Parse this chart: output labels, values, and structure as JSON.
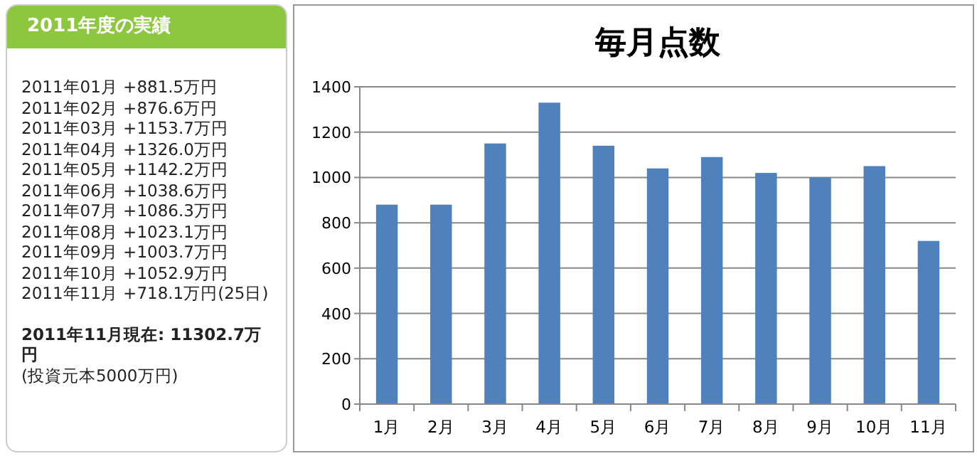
{
  "chart_data": [
    {
      "type": "other",
      "title": "2011年度の実績",
      "subtitle": "2011年11月現在: 11302.7万円",
      "annotations": [
        "2011年01月 +881.5万円",
        "2011年02月 +876.6万円",
        "2011年03月 +1153.7万円",
        "2011年04月 +1326.0万円",
        "2011年05月 +1142.2万円",
        "2011年06月 +1038.6万円",
        "2011年07月 +1086.3万円",
        "2011年08月 +1023.1万円",
        "2011年09月 +1003.7万円",
        "2011年10月 +1052.9万円",
        "2011年11月 +718.1万円(25日)",
        "(投資元本5000万円)"
      ]
    },
    {
      "type": "bar",
      "title": "毎月点数",
      "categories": [
        "1月",
        "2月",
        "3月",
        "4月",
        "5月",
        "6月",
        "7月",
        "8月",
        "9月",
        "10月",
        "11月"
      ],
      "values": [
        880,
        880,
        1150,
        1330,
        1140,
        1040,
        1090,
        1020,
        1000,
        1050,
        720
      ],
      "color": "#4f81bd",
      "ylim": [
        0,
        1400
      ],
      "yticks": [
        0,
        200,
        400,
        600,
        800,
        1000,
        1200,
        1400
      ],
      "grid": "y"
    }
  ]
}
